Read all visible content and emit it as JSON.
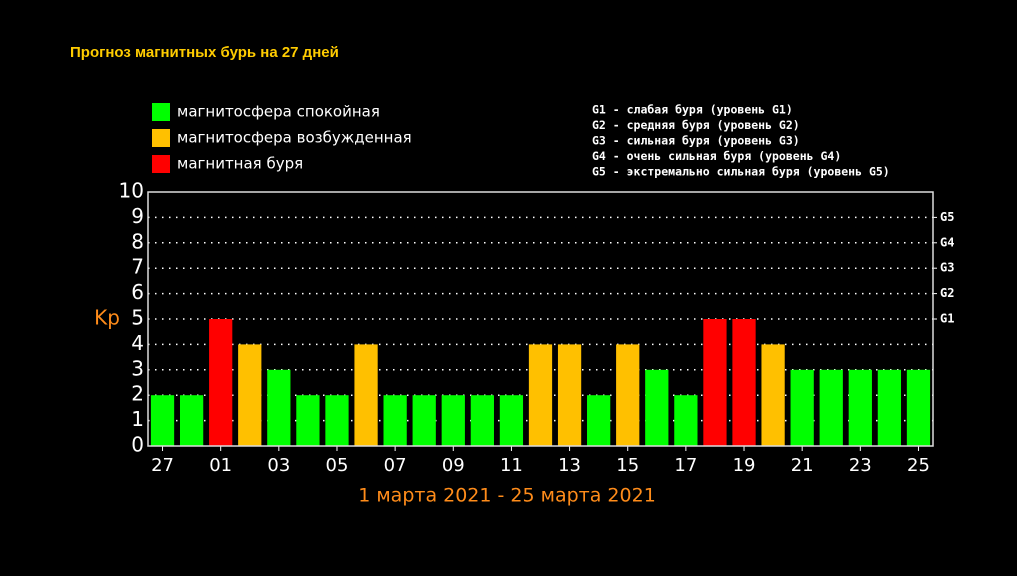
{
  "chart_data": {
    "type": "bar",
    "title": "Прогноз магнитных бурь на 27 дней",
    "subtitle": "1 марта 2021 - 25 марта 2021",
    "y_label": "Kp",
    "legend": [
      {
        "label": "магнитосфера спокойная",
        "color": "#00ff00"
      },
      {
        "label": "магнитосфера возбужденная",
        "color": "#ffc000"
      },
      {
        "label": "магнитная буря",
        "color": "#ff0000"
      }
    ],
    "notes": [
      "G1 - слабая буря (уровень G1)",
      "G2 - средняя буря (уровень G2)",
      "G3 - сильная буря (уровень G3)",
      "G4 - очень сильная буря (уровень G4)",
      "G5 - экстремально сильная буря (уровень G5)"
    ],
    "categories": [
      "27",
      null,
      "01",
      null,
      "03",
      null,
      "05",
      null,
      "07",
      null,
      "09",
      null,
      "11",
      null,
      "13",
      null,
      "15",
      null,
      "17",
      null,
      "19",
      null,
      "21",
      null,
      "23",
      null,
      "25"
    ],
    "values": [
      2,
      2,
      5,
      4,
      3,
      2,
      2,
      4,
      2,
      2,
      2,
      2,
      2,
      4,
      4,
      2,
      4,
      3,
      2,
      5,
      5,
      4,
      3,
      3,
      3,
      3,
      3
    ],
    "colors": [
      "#00ff00",
      "#00ff00",
      "#ff0000",
      "#ffc000",
      "#00ff00",
      "#00ff00",
      "#00ff00",
      "#ffc000",
      "#00ff00",
      "#00ff00",
      "#00ff00",
      "#00ff00",
      "#00ff00",
      "#ffc000",
      "#ffc000",
      "#00ff00",
      "#ffc000",
      "#00ff00",
      "#00ff00",
      "#ff0000",
      "#ff0000",
      "#ffc000",
      "#00ff00",
      "#00ff00",
      "#00ff00",
      "#00ff00",
      "#00ff00"
    ],
    "ylim": [
      0,
      10
    ],
    "yticks": [
      0,
      1,
      2,
      3,
      4,
      5,
      6,
      7,
      8,
      9,
      10
    ],
    "y2lim": [
      0,
      10
    ],
    "y2ticks": [
      {
        "value": 5,
        "label": "G1"
      },
      {
        "value": 6,
        "label": "G2"
      },
      {
        "value": 7,
        "label": "G3"
      },
      {
        "value": 8,
        "label": "G4"
      },
      {
        "value": 9,
        "label": "G5"
      }
    ],
    "grid": true
  }
}
